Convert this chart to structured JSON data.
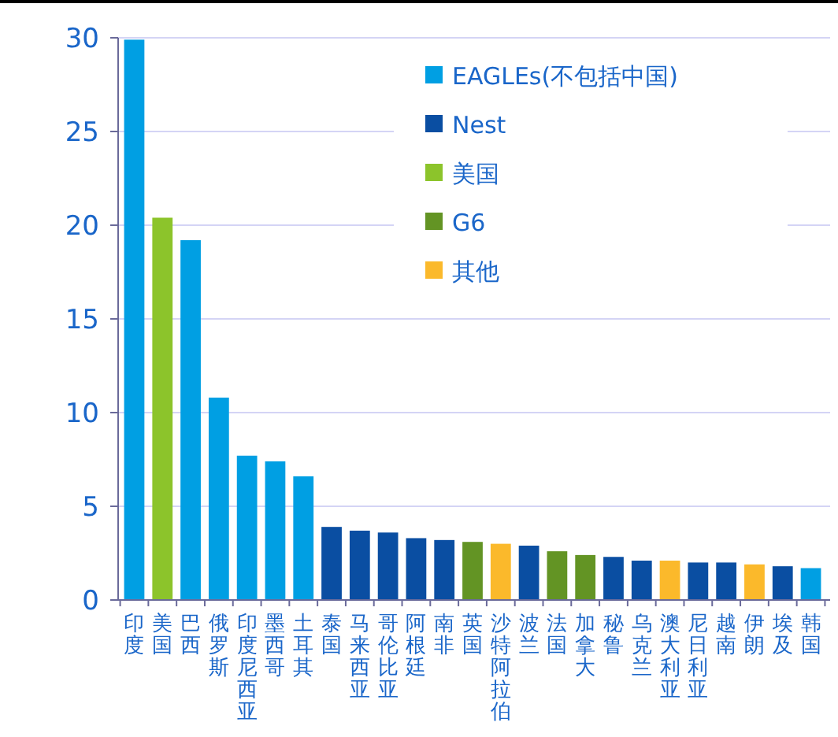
{
  "chart_data": {
    "type": "bar",
    "categories": [
      "印度",
      "美国",
      "巴西",
      "俄罗斯",
      "印度尼西亚",
      "墨西哥",
      "土耳其",
      "泰国",
      "马来西亚",
      "哥伦比亚",
      "阿根廷",
      "南非",
      "英国",
      "沙特阿拉伯",
      "波兰",
      "法国",
      "加拿大",
      "秘鲁",
      "乌克兰",
      "澳大利亚",
      "尼日利亚",
      "越南",
      "伊朗",
      "埃及",
      "韩国"
    ],
    "series": [
      {
        "name": "EAGLEs(不包括中国)",
        "color": "#009fe3",
        "values": [
          29.9,
          null,
          19.2,
          10.8,
          7.7,
          7.4,
          6.6,
          null,
          null,
          null,
          null,
          null,
          null,
          null,
          null,
          null,
          null,
          null,
          null,
          null,
          null,
          null,
          null,
          null,
          1.7
        ]
      },
      {
        "name": "Nest",
        "color": "#0a4ea2",
        "values": [
          null,
          null,
          null,
          null,
          null,
          null,
          null,
          3.9,
          3.7,
          3.6,
          3.3,
          3.2,
          null,
          null,
          2.9,
          null,
          null,
          2.3,
          2.1,
          null,
          2.0,
          2.0,
          null,
          1.8,
          null
        ]
      },
      {
        "name": "美国",
        "color": "#8cc42b",
        "values": [
          null,
          20.4,
          null,
          null,
          null,
          null,
          null,
          null,
          null,
          null,
          null,
          null,
          null,
          null,
          null,
          null,
          null,
          null,
          null,
          null,
          null,
          null,
          null,
          null,
          null
        ]
      },
      {
        "name": "G6",
        "color": "#639424",
        "values": [
          null,
          null,
          null,
          null,
          null,
          null,
          null,
          null,
          null,
          null,
          null,
          null,
          3.1,
          null,
          null,
          2.6,
          2.4,
          null,
          null,
          null,
          null,
          null,
          null,
          null,
          null
        ]
      },
      {
        "name": "其他",
        "color": "#fbb92b",
        "values": [
          null,
          null,
          null,
          null,
          null,
          null,
          null,
          null,
          null,
          null,
          null,
          null,
          null,
          3.0,
          null,
          null,
          null,
          null,
          null,
          2.1,
          null,
          null,
          1.9,
          null,
          null
        ]
      }
    ],
    "ylim": [
      0,
      30
    ],
    "yticks": [
      0,
      5,
      10,
      15,
      20,
      25,
      30
    ],
    "grid": "y",
    "legend": "top right"
  }
}
